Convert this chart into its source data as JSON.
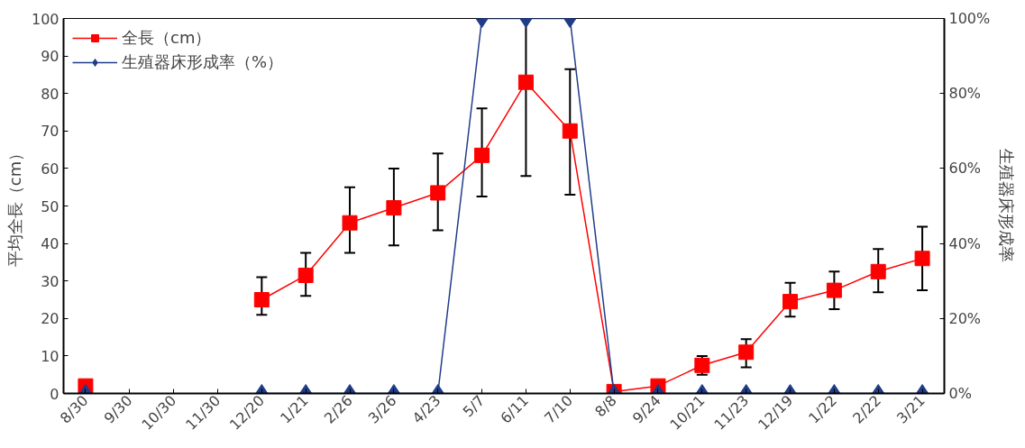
{
  "chart_data": {
    "type": "line",
    "xlabel": null,
    "ylabel": "平均全長（cm）",
    "y2label": "生殖器床形成率",
    "categories": [
      "8/30",
      "9/30",
      "10/30",
      "11/30",
      "12/20",
      "1/21",
      "2/26",
      "3/26",
      "4/23",
      "5/7",
      "6/11",
      "7/10",
      "8/8",
      "9/24",
      "10/21",
      "11/23",
      "12/19",
      "1/22",
      "2/22",
      "3/21"
    ],
    "series": [
      {
        "name": "全長（cm）",
        "color": "#ff0000",
        "marker": "square",
        "values": [
          2,
          null,
          null,
          null,
          25,
          31.5,
          45.5,
          49.5,
          53.5,
          63.5,
          83,
          70,
          0.5,
          2,
          7.5,
          11,
          24.5,
          27.5,
          32.5,
          36
        ],
        "errors": [
          null,
          null,
          null,
          null,
          [
            21,
            31
          ],
          [
            26,
            37.5
          ],
          [
            37.5,
            55
          ],
          [
            39.5,
            60
          ],
          [
            43.5,
            64
          ],
          [
            52.5,
            76
          ],
          [
            58,
            100
          ],
          [
            53,
            86.5
          ],
          null,
          null,
          [
            5,
            10
          ],
          [
            7,
            14.5
          ],
          [
            20.5,
            29.5
          ],
          [
            22.5,
            32.5
          ],
          [
            27,
            38.5
          ],
          [
            27.5,
            44.5
          ]
        ]
      },
      {
        "name": "生殖器床形成率（%）",
        "color": "#1f3c88",
        "marker": "diamond",
        "axis": "y2",
        "values": [
          0,
          null,
          null,
          null,
          0,
          0,
          0,
          0,
          0,
          100,
          100,
          100,
          0,
          0,
          0,
          0,
          0,
          0,
          0,
          0
        ]
      }
    ],
    "ylim": [
      0,
      100
    ],
    "yticks": [
      0,
      10,
      20,
      30,
      40,
      50,
      60,
      70,
      80,
      90,
      100
    ],
    "y2lim": [
      0,
      100
    ],
    "y2ticks": [
      {
        "value": 0,
        "label": "0%"
      },
      {
        "value": 20,
        "label": "20%"
      },
      {
        "value": 40,
        "label": "40%"
      },
      {
        "value": 60,
        "label": "60%"
      },
      {
        "value": 80,
        "label": "80%"
      },
      {
        "value": 100,
        "label": "100%"
      }
    ],
    "grid": false,
    "legend": "top left"
  }
}
